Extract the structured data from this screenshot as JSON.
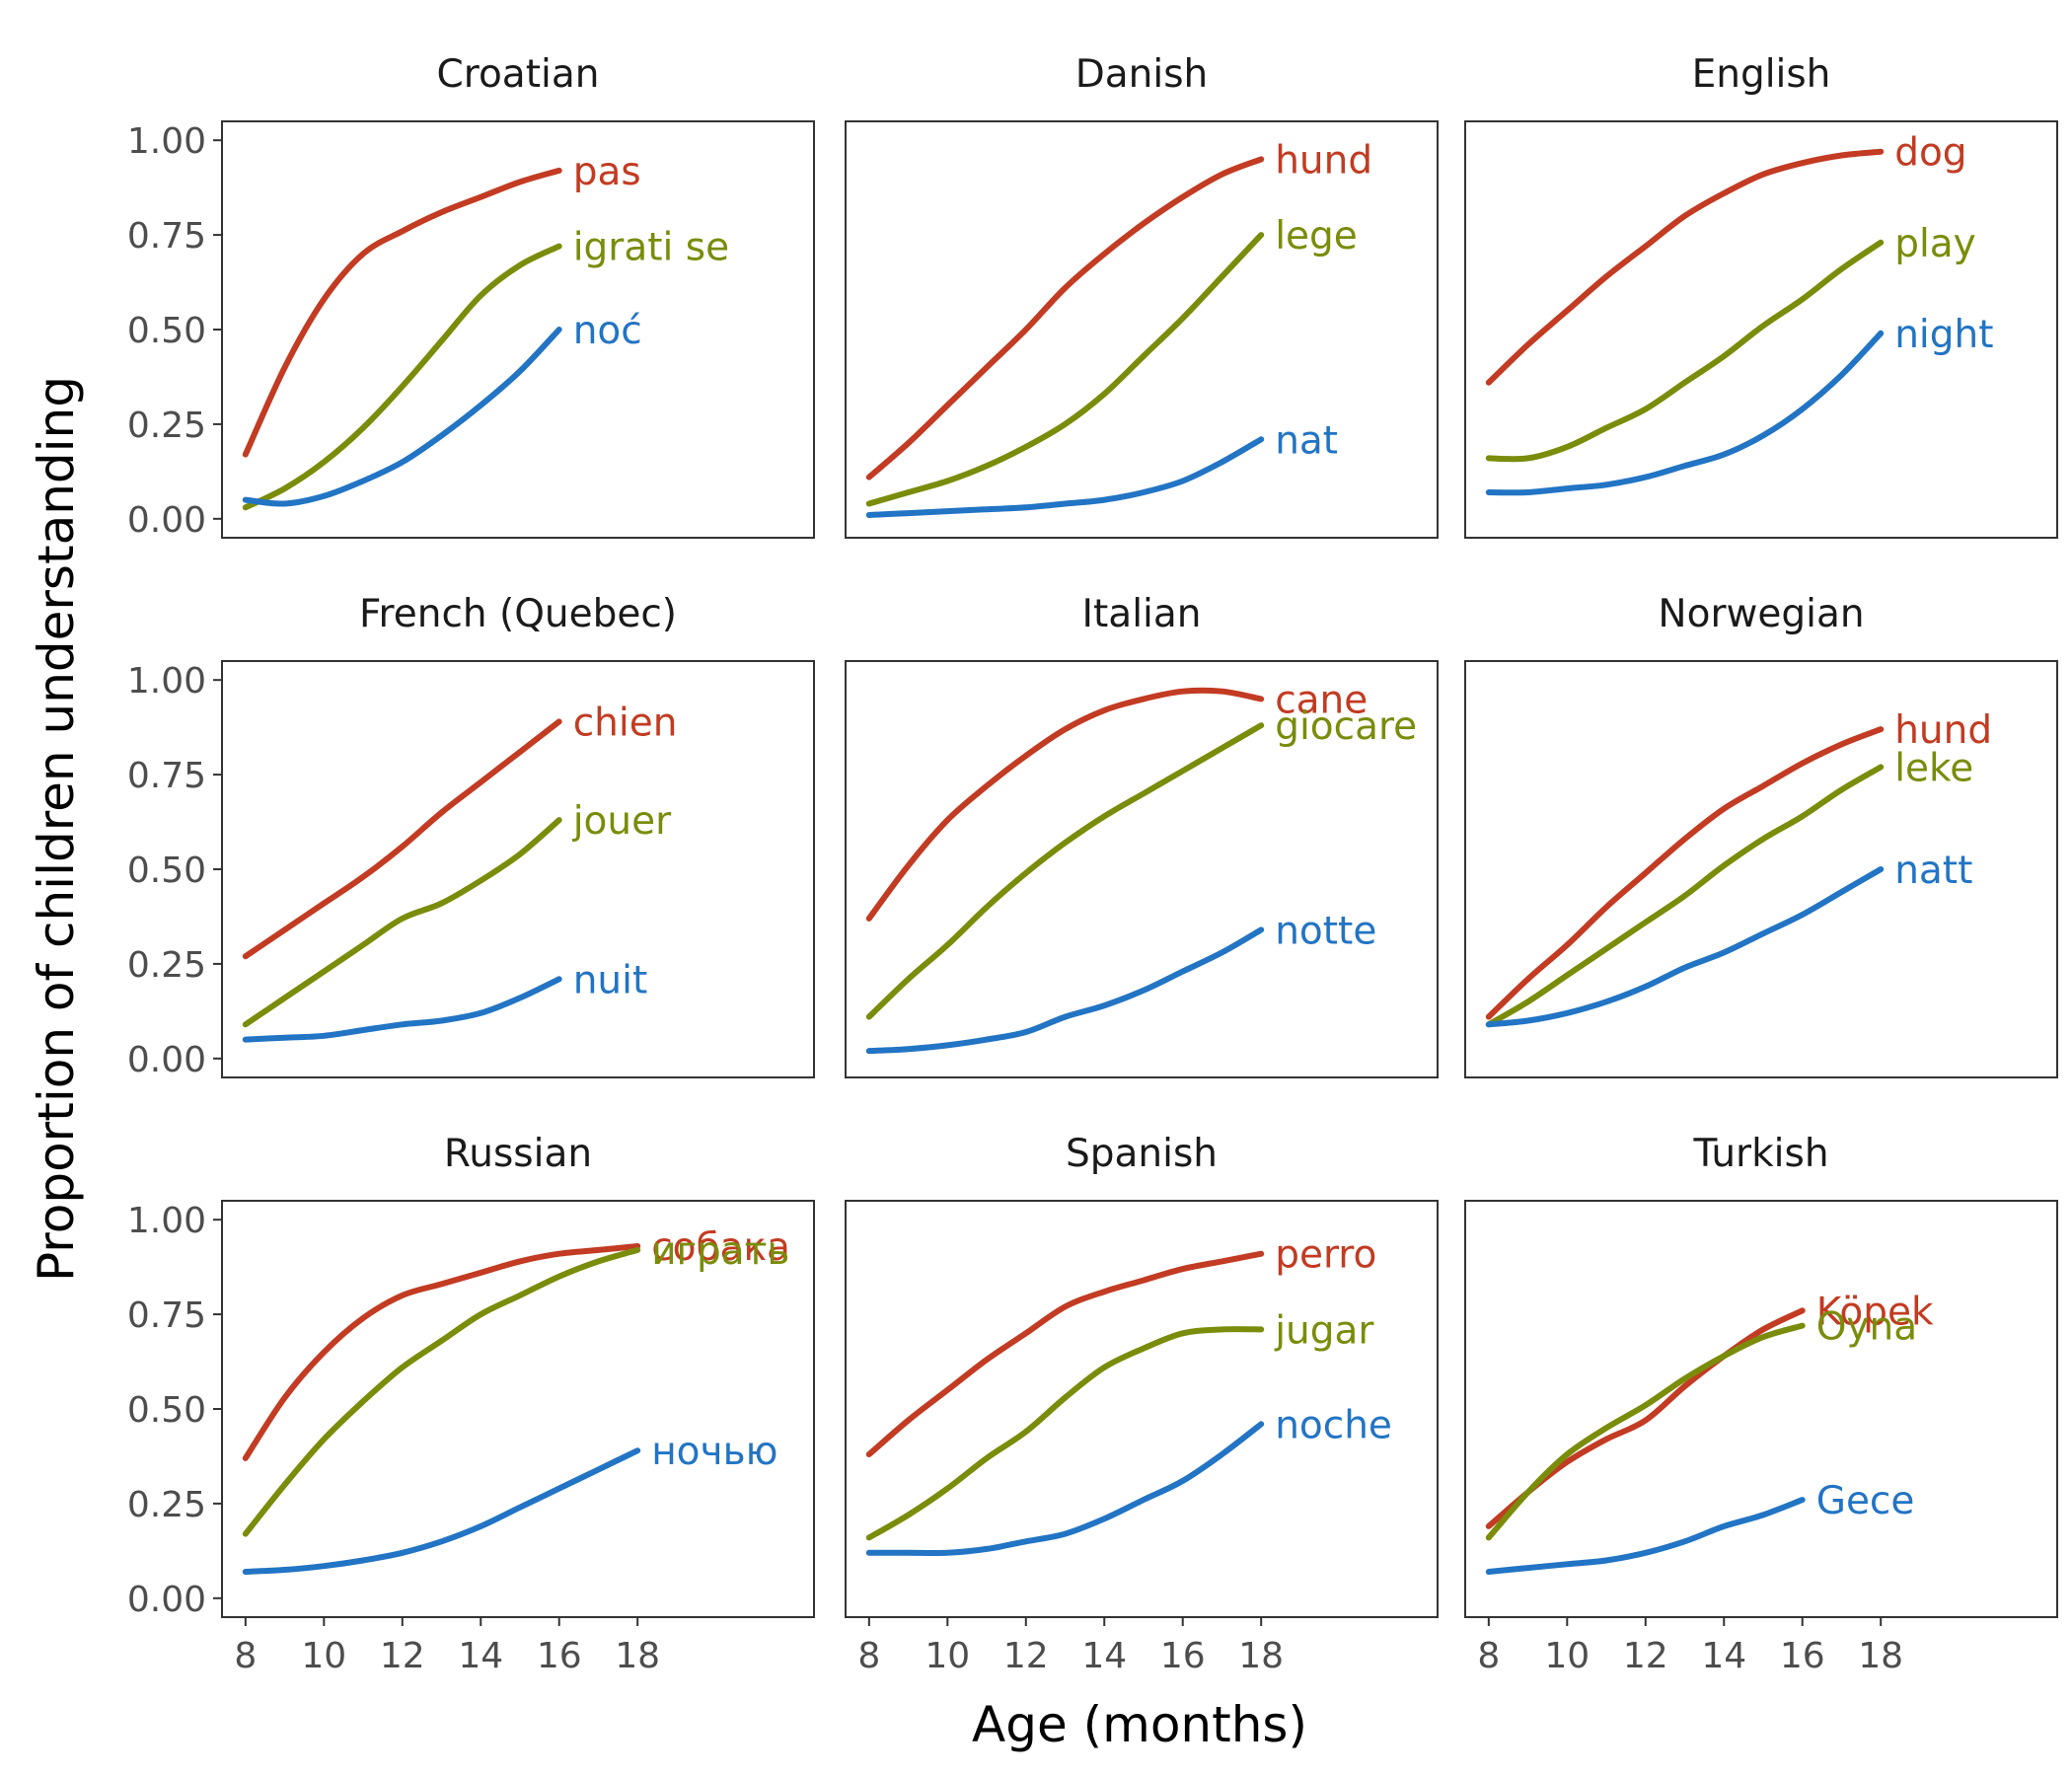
{
  "chart_data": {
    "type": "line",
    "xlabel": "Age (months)",
    "ylabel": "Proportion of children understanding",
    "xlim": [
      7.4,
      22.5
    ],
    "ylim": [
      -0.05,
      1.05
    ],
    "x_ticks": [
      8,
      10,
      12,
      14,
      16,
      18
    ],
    "y_ticks": [
      0,
      0.25,
      0.5,
      0.75,
      1.0
    ],
    "y_tick_labels": [
      "0.00",
      "0.25",
      "0.50",
      "0.75",
      "1.00"
    ],
    "grid": false,
    "legend": "none (direct labels at line ends)",
    "colors": {
      "red": "#c23b22",
      "green": "#7a8c0a",
      "blue": "#2274c4"
    },
    "panels": [
      {
        "title": "Croatian",
        "series": [
          {
            "name": "pas",
            "color": "red",
            "x": [
              8,
              9,
              10,
              11,
              12,
              13,
              14,
              15,
              16
            ],
            "y": [
              0.17,
              0.4,
              0.58,
              0.7,
              0.76,
              0.81,
              0.85,
              0.89,
              0.92
            ]
          },
          {
            "name": "igrati se",
            "color": "green",
            "x": [
              8,
              9,
              10,
              11,
              12,
              13,
              14,
              15,
              16
            ],
            "y": [
              0.03,
              0.08,
              0.15,
              0.24,
              0.35,
              0.47,
              0.59,
              0.67,
              0.72
            ]
          },
          {
            "name": "noć",
            "color": "blue",
            "x": [
              8,
              9,
              10,
              11,
              12,
              13,
              14,
              15,
              16
            ],
            "y": [
              0.05,
              0.04,
              0.06,
              0.1,
              0.15,
              0.22,
              0.3,
              0.39,
              0.5
            ]
          }
        ]
      },
      {
        "title": "Danish",
        "series": [
          {
            "name": "hund",
            "color": "red",
            "x": [
              8,
              9,
              10,
              11,
              12,
              13,
              14,
              15,
              16,
              17,
              18
            ],
            "y": [
              0.11,
              0.2,
              0.3,
              0.4,
              0.5,
              0.61,
              0.7,
              0.78,
              0.85,
              0.91,
              0.95
            ]
          },
          {
            "name": "lege",
            "color": "green",
            "x": [
              8,
              9,
              10,
              11,
              12,
              13,
              14,
              15,
              16,
              17,
              18
            ],
            "y": [
              0.04,
              0.07,
              0.1,
              0.14,
              0.19,
              0.25,
              0.33,
              0.43,
              0.53,
              0.64,
              0.75
            ]
          },
          {
            "name": "nat",
            "color": "blue",
            "x": [
              8,
              9,
              10,
              11,
              12,
              13,
              14,
              15,
              16,
              17,
              18
            ],
            "y": [
              0.01,
              0.015,
              0.02,
              0.025,
              0.03,
              0.04,
              0.05,
              0.07,
              0.1,
              0.15,
              0.21
            ]
          }
        ]
      },
      {
        "title": "English",
        "series": [
          {
            "name": "dog",
            "color": "red",
            "x": [
              8,
              9,
              10,
              11,
              12,
              13,
              14,
              15,
              16,
              17,
              18
            ],
            "y": [
              0.36,
              0.46,
              0.55,
              0.64,
              0.72,
              0.8,
              0.86,
              0.91,
              0.94,
              0.96,
              0.97
            ]
          },
          {
            "name": "play",
            "color": "green",
            "x": [
              8,
              9,
              10,
              11,
              12,
              13,
              14,
              15,
              16,
              17,
              18
            ],
            "y": [
              0.16,
              0.16,
              0.19,
              0.24,
              0.29,
              0.36,
              0.43,
              0.51,
              0.58,
              0.66,
              0.73
            ]
          },
          {
            "name": "night",
            "color": "blue",
            "x": [
              8,
              9,
              10,
              11,
              12,
              13,
              14,
              15,
              16,
              17,
              18
            ],
            "y": [
              0.07,
              0.07,
              0.08,
              0.09,
              0.11,
              0.14,
              0.17,
              0.22,
              0.29,
              0.38,
              0.49
            ]
          }
        ]
      },
      {
        "title": "French (Quebec)",
        "series": [
          {
            "name": "chien",
            "color": "red",
            "x": [
              8,
              9,
              10,
              11,
              12,
              13,
              14,
              15,
              16
            ],
            "y": [
              0.27,
              0.34,
              0.41,
              0.48,
              0.56,
              0.65,
              0.73,
              0.81,
              0.89
            ]
          },
          {
            "name": "jouer",
            "color": "green",
            "x": [
              8,
              9,
              10,
              11,
              12,
              13,
              14,
              15,
              16
            ],
            "y": [
              0.09,
              0.16,
              0.23,
              0.3,
              0.37,
              0.41,
              0.47,
              0.54,
              0.63
            ]
          },
          {
            "name": "nuit",
            "color": "blue",
            "x": [
              8,
              9,
              10,
              11,
              12,
              13,
              14,
              15,
              16
            ],
            "y": [
              0.05,
              0.055,
              0.06,
              0.075,
              0.09,
              0.1,
              0.12,
              0.16,
              0.21
            ]
          }
        ]
      },
      {
        "title": "Italian",
        "series": [
          {
            "name": "cane",
            "color": "red",
            "x": [
              8,
              9,
              10,
              11,
              12,
              13,
              14,
              15,
              16,
              17,
              18
            ],
            "y": [
              0.37,
              0.51,
              0.63,
              0.72,
              0.8,
              0.87,
              0.92,
              0.95,
              0.97,
              0.97,
              0.95
            ]
          },
          {
            "name": "giocare",
            "color": "green",
            "x": [
              8,
              9,
              10,
              11,
              12,
              13,
              14,
              15,
              16,
              17,
              18
            ],
            "y": [
              0.11,
              0.21,
              0.3,
              0.4,
              0.49,
              0.57,
              0.64,
              0.7,
              0.76,
              0.82,
              0.88
            ]
          },
          {
            "name": "notte",
            "color": "blue",
            "x": [
              8,
              9,
              10,
              11,
              12,
              13,
              14,
              15,
              16,
              17,
              18
            ],
            "y": [
              0.02,
              0.025,
              0.035,
              0.05,
              0.07,
              0.11,
              0.14,
              0.18,
              0.23,
              0.28,
              0.34
            ]
          }
        ]
      },
      {
        "title": "Norwegian",
        "series": [
          {
            "name": "hund",
            "color": "red",
            "x": [
              8,
              9,
              10,
              11,
              12,
              13,
              14,
              15,
              16,
              17,
              18
            ],
            "y": [
              0.11,
              0.21,
              0.3,
              0.4,
              0.49,
              0.58,
              0.66,
              0.72,
              0.78,
              0.83,
              0.87
            ]
          },
          {
            "name": "leke",
            "color": "green",
            "x": [
              8,
              9,
              10,
              11,
              12,
              13,
              14,
              15,
              16,
              17,
              18
            ],
            "y": [
              0.09,
              0.15,
              0.22,
              0.29,
              0.36,
              0.43,
              0.51,
              0.58,
              0.64,
              0.71,
              0.77
            ]
          },
          {
            "name": "natt",
            "color": "blue",
            "x": [
              8,
              9,
              10,
              11,
              12,
              13,
              14,
              15,
              16,
              17,
              18
            ],
            "y": [
              0.09,
              0.1,
              0.12,
              0.15,
              0.19,
              0.24,
              0.28,
              0.33,
              0.38,
              0.44,
              0.5
            ]
          }
        ]
      },
      {
        "title": "Russian",
        "series": [
          {
            "name": "собака",
            "color": "red",
            "x": [
              8,
              9,
              10,
              11,
              12,
              13,
              14,
              15,
              16,
              17,
              18
            ],
            "y": [
              0.37,
              0.53,
              0.65,
              0.74,
              0.8,
              0.83,
              0.86,
              0.89,
              0.91,
              0.92,
              0.93
            ]
          },
          {
            "name": "играть",
            "color": "green",
            "x": [
              8,
              9,
              10,
              11,
              12,
              13,
              14,
              15,
              16,
              17,
              18
            ],
            "y": [
              0.17,
              0.3,
              0.42,
              0.52,
              0.61,
              0.68,
              0.75,
              0.8,
              0.85,
              0.89,
              0.92
            ]
          },
          {
            "name": "ночью",
            "color": "blue",
            "x": [
              8,
              9,
              10,
              11,
              12,
              13,
              14,
              15,
              16,
              17,
              18
            ],
            "y": [
              0.07,
              0.075,
              0.085,
              0.1,
              0.12,
              0.15,
              0.19,
              0.24,
              0.29,
              0.34,
              0.39
            ]
          }
        ]
      },
      {
        "title": "Spanish",
        "series": [
          {
            "name": "perro",
            "color": "red",
            "x": [
              8,
              9,
              10,
              11,
              12,
              13,
              14,
              15,
              16,
              17,
              18
            ],
            "y": [
              0.38,
              0.47,
              0.55,
              0.63,
              0.7,
              0.77,
              0.81,
              0.84,
              0.87,
              0.89,
              0.91
            ]
          },
          {
            "name": "jugar",
            "color": "green",
            "x": [
              8,
              9,
              10,
              11,
              12,
              13,
              14,
              15,
              16,
              17,
              18
            ],
            "y": [
              0.16,
              0.22,
              0.29,
              0.37,
              0.44,
              0.53,
              0.61,
              0.66,
              0.7,
              0.71,
              0.71
            ]
          },
          {
            "name": "noche",
            "color": "blue",
            "x": [
              8,
              9,
              10,
              11,
              12,
              13,
              14,
              15,
              16,
              17,
              18
            ],
            "y": [
              0.12,
              0.12,
              0.12,
              0.13,
              0.15,
              0.17,
              0.21,
              0.26,
              0.31,
              0.38,
              0.46
            ]
          }
        ]
      },
      {
        "title": "Turkish",
        "series": [
          {
            "name": "Köpek",
            "color": "red",
            "x": [
              8,
              9,
              10,
              11,
              12,
              13,
              14,
              15,
              16
            ],
            "y": [
              0.19,
              0.28,
              0.36,
              0.42,
              0.47,
              0.56,
              0.64,
              0.71,
              0.76
            ]
          },
          {
            "name": "Oyna",
            "color": "green",
            "x": [
              8,
              9,
              10,
              11,
              12,
              13,
              14,
              15,
              16
            ],
            "y": [
              0.16,
              0.28,
              0.38,
              0.45,
              0.51,
              0.58,
              0.64,
              0.69,
              0.72
            ]
          },
          {
            "name": "Gece",
            "color": "blue",
            "x": [
              8,
              9,
              10,
              11,
              12,
              13,
              14,
              15,
              16
            ],
            "y": [
              0.07,
              0.08,
              0.09,
              0.1,
              0.12,
              0.15,
              0.19,
              0.22,
              0.26
            ]
          }
        ]
      }
    ]
  }
}
